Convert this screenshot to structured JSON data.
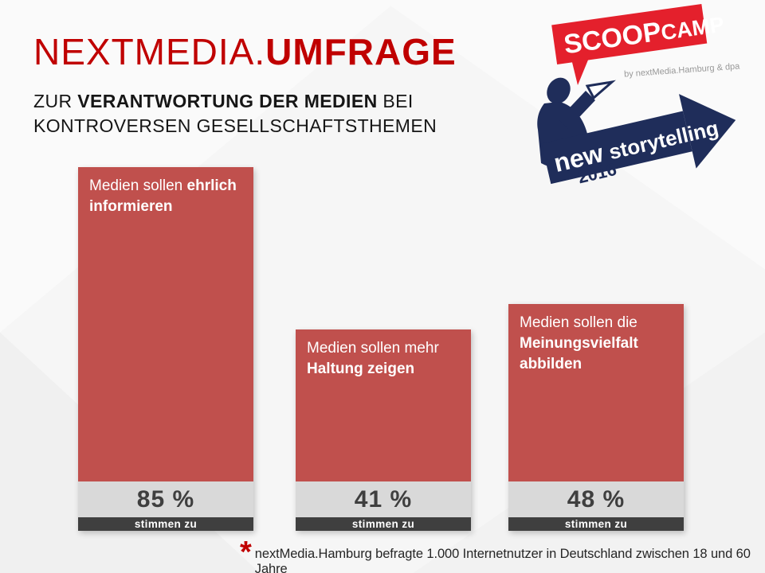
{
  "header": {
    "title_regular": "NEXTMEDIA.",
    "title_bold": "UMFRAGE",
    "subtitle_pre": "ZUR ",
    "subtitle_bold": "VERANTWORTUNG DER MEDIEN",
    "subtitle_post": " BEI",
    "subtitle_line2": "KONTROVERSEN GESELLSCHAFTSTHEMEN"
  },
  "logo": {
    "scoop": "SCOOP",
    "camp": "CAMP",
    "byline": "by nextMedia.Hamburg & dpa",
    "banner_new": "new",
    "banner_rest": "storytelling",
    "year": "2016"
  },
  "bars": [
    {
      "label_regular": "Medien sollen ",
      "label_bold": "ehrlich informieren",
      "value_label": "85 %"
    },
    {
      "label_regular": "Medien sollen mehr ",
      "label_bold": "Haltung zeigen",
      "value_label": "41 %"
    },
    {
      "label_regular": "Medien sollen die ",
      "label_bold": "Meinungsvielfalt abbilden",
      "value_label": "48 %"
    }
  ],
  "labels": {
    "agree": "stimmen zu"
  },
  "footnote": {
    "marker": "*",
    "text": "nextMedia.Hamburg befragte 1.000 Internetnutzer in Deutschland zwischen 18 und 60 Jahre"
  },
  "chart_data": {
    "type": "bar",
    "title": "NEXTMEDIA.UMFRAGE",
    "subtitle": "ZUR VERANTWORTUNG DER MEDIEN BEI KONTROVERSEN GESELLSCHAFTSTHEMEN",
    "categories": [
      "Medien sollen ehrlich informieren",
      "Medien sollen mehr Haltung zeigen",
      "Medien sollen die Meinungsvielfalt abbilden"
    ],
    "values": [
      85,
      41,
      48
    ],
    "unit": "%",
    "series_label": "stimmen zu",
    "ylim": [
      0,
      100
    ],
    "grid": false,
    "legend": false,
    "bar_color": "#C0504D"
  },
  "colors": {
    "title_red": "#C00000",
    "bar_red": "#C0504D",
    "value_bg_gray": "#D9D9D9",
    "caption_bg_dark": "#3F3F3F",
    "logo_red": "#E4202C",
    "logo_navy": "#1F2D5A"
  }
}
